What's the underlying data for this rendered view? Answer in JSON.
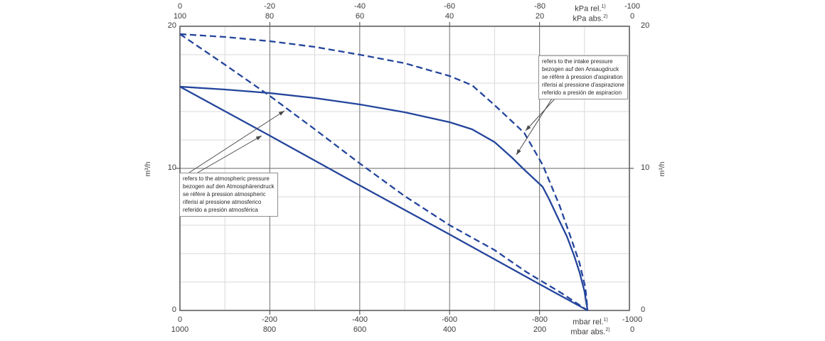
{
  "axes": {
    "top_rel": {
      "ticks": [
        "0",
        "-20",
        "-40",
        "-60",
        "-80",
        "-100"
      ],
      "unit": "kPa rel.",
      "unit_sup": "1)"
    },
    "top_abs": {
      "ticks": [
        "100",
        "80",
        "60",
        "40",
        "20",
        "0"
      ],
      "unit": "kPa abs.",
      "unit_sup": "2)"
    },
    "bottom_rel": {
      "ticks": [
        "0",
        "-200",
        "-400",
        "-600",
        "-800",
        "-1000"
      ],
      "unit": "mbar rel.",
      "unit_sup": "1)"
    },
    "bottom_abs": {
      "ticks": [
        "1000",
        "800",
        "600",
        "400",
        "200",
        "0"
      ],
      "unit": "mbar abs.",
      "unit_sup": "2)"
    },
    "left": {
      "ticks": [
        "20",
        "10",
        "0"
      ],
      "unit": "m³/h"
    },
    "right": {
      "ticks": [
        "20",
        "10",
        "0"
      ],
      "unit": "m³/h"
    }
  },
  "annotations": {
    "intake": {
      "lines": [
        "refers to the intake pressure",
        "bezogen auf den Ansaugdruck",
        "se réfère à pression d'aspiration",
        "riferisi al pressione d'aspirazione",
        "referido a presión de aspiracion"
      ]
    },
    "atmospheric": {
      "lines": [
        "refers to the atmospheric pressure",
        "bezogen auf den Atmosphärendruck",
        "se réfère à pression atmospheric",
        "riferisi al pressione atmosferico",
        "referido a presión atmosférica"
      ]
    }
  },
  "chart_data": {
    "type": "line",
    "title": "",
    "x_axis": {
      "kpa_rel": [
        0,
        -20,
        -40,
        -60,
        -80,
        -100
      ],
      "kpa_abs": [
        100,
        80,
        60,
        40,
        20,
        0
      ],
      "mbar_rel": [
        0,
        -200,
        -400,
        -600,
        -800,
        -1000
      ],
      "mbar_abs": [
        1000,
        800,
        600,
        400,
        200,
        0
      ],
      "range_mbar_rel": [
        0,
        -1000
      ]
    },
    "y_axis": {
      "label": "m³/h",
      "ticks": [
        0,
        10,
        20
      ],
      "range": [
        0,
        20
      ],
      "minor_step": 2
    },
    "grid": {
      "v_minor_mbar": [
        -100,
        -300,
        -500,
        -700,
        -900
      ],
      "v_major_mbar": [
        -200,
        -400,
        -600,
        -800
      ],
      "h_minor": [
        2,
        4,
        6,
        8,
        12,
        14,
        16,
        18
      ],
      "h_major": [
        10
      ]
    },
    "colors": {
      "curve": "#24459c",
      "grid_minor": "#d9d9d9",
      "grid_major": "#858585",
      "border": "#5f5f5f",
      "leader": "#4a4a4a",
      "text": "#333333"
    },
    "series": [
      {
        "name": "flow-referred-to-intake-pressure-dashed",
        "style": "dashed",
        "points": [
          [
            0,
            19.45
          ],
          [
            -100,
            19.25
          ],
          [
            -200,
            18.95
          ],
          [
            -300,
            18.55
          ],
          [
            -400,
            18.0
          ],
          [
            -500,
            17.4
          ],
          [
            -600,
            16.5
          ],
          [
            -650,
            15.85
          ],
          [
            -700,
            14.45
          ],
          [
            -766,
            12.5
          ],
          [
            -807,
            10.25
          ],
          [
            -845,
            7.35
          ],
          [
            -870,
            5.1
          ],
          [
            -889,
            3.35
          ],
          [
            -902,
            1.6
          ],
          [
            -907,
            0
          ]
        ]
      },
      {
        "name": "flow-referred-to-intake-pressure-solid",
        "style": "solid",
        "points": [
          [
            0,
            15.75
          ],
          [
            -100,
            15.55
          ],
          [
            -200,
            15.3
          ],
          [
            -300,
            14.95
          ],
          [
            -400,
            14.5
          ],
          [
            -500,
            13.95
          ],
          [
            -600,
            13.25
          ],
          [
            -650,
            12.75
          ],
          [
            -700,
            11.85
          ],
          [
            -739,
            10.75
          ],
          [
            -763,
            10.0
          ],
          [
            -807,
            8.7
          ],
          [
            -821,
            7.85
          ],
          [
            -842,
            6.45
          ],
          [
            -861,
            5.2
          ],
          [
            -877,
            3.85
          ],
          [
            -889,
            2.7
          ],
          [
            -900,
            1.35
          ],
          [
            -907,
            0
          ]
        ]
      },
      {
        "name": "flow-referred-to-atmospheric-pressure-dashed",
        "style": "dashed",
        "points": [
          [
            0,
            19.45
          ],
          [
            -100,
            17.3
          ],
          [
            -200,
            15.1
          ],
          [
            -300,
            12.75
          ],
          [
            -400,
            10.35
          ],
          [
            -500,
            8.05
          ],
          [
            -600,
            6.0
          ],
          [
            -700,
            4.25
          ],
          [
            -771,
            2.7
          ],
          [
            -850,
            1.2
          ],
          [
            -907,
            0
          ]
        ]
      },
      {
        "name": "flow-referred-to-atmospheric-pressure-solid",
        "style": "solid",
        "points": [
          [
            0,
            15.75
          ],
          [
            -200,
            12.3
          ],
          [
            -400,
            8.8
          ],
          [
            -600,
            5.35
          ],
          [
            -800,
            1.85
          ],
          [
            -907,
            0
          ]
        ]
      }
    ]
  }
}
